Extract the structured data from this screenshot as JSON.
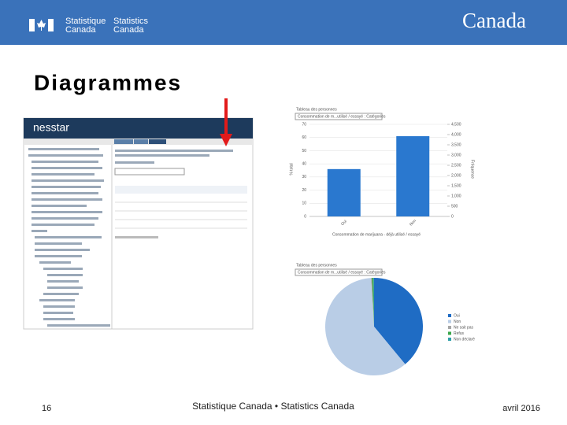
{
  "header": {
    "fip_fr_1": "Statistique",
    "fip_fr_2": "Canada",
    "fip_en_1": "Statistics",
    "fip_en_2": "Canada",
    "wordmark": "Canada"
  },
  "title": "Diagrammes",
  "left_screenshot": {
    "logo": "nesstar"
  },
  "bar_chart": {
    "type": "bar",
    "table_label": "Tableau des personnes",
    "selector": "Consommation de m...utilisé / essayé : Catégories",
    "categories": [
      "Oui",
      "Non"
    ],
    "values": [
      36,
      61
    ],
    "color": "#2a78cf",
    "ylim": [
      0,
      70
    ],
    "yticks": [
      0,
      10,
      20,
      30,
      40,
      50,
      60,
      70
    ],
    "y2lim": [
      0,
      4500
    ],
    "y2ticks": [
      {
        "value": 0,
        "label": "0"
      },
      {
        "value": 500,
        "label": "500"
      },
      {
        "value": 1000,
        "label": "1,000"
      },
      {
        "value": 1500,
        "label": "1,500"
      },
      {
        "value": 2000,
        "label": "2,000"
      },
      {
        "value": 2500,
        "label": "2,500"
      },
      {
        "value": 3000,
        "label": "3,000"
      },
      {
        "value": 3500,
        "label": "3,500"
      },
      {
        "value": 4000,
        "label": "4,000"
      },
      {
        "value": 4500,
        "label": "4,500"
      }
    ],
    "ylabel": "% total",
    "y2label": "Fréquence",
    "xlabel": "Consommation de marijuana - déjà utilisé / essayé",
    "grid": true
  },
  "pie_chart": {
    "type": "pie",
    "table_label": "Tableau des personnes",
    "selector": "Consommation de m...utilisé / essayé : Catégories",
    "categories": [
      "Oui",
      "Non",
      "Ne sait pas",
      "Refus",
      "Non déclaré"
    ],
    "values": [
      39,
      60,
      0.3,
      0.5,
      0.2
    ],
    "colors": [
      "#1f6cc4",
      "#b9cde6",
      "#a6a6a6",
      "#3aa64a",
      "#2f9fa8"
    ]
  },
  "footer": {
    "page": "16",
    "agency": "Statistique Canada • Statistics Canada",
    "date": "avril 2016"
  }
}
